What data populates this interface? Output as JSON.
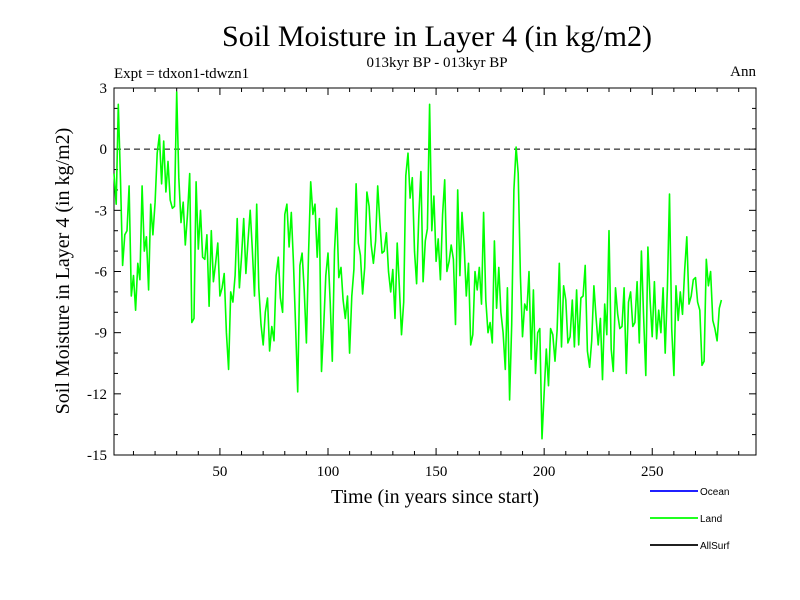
{
  "chart_data": {
    "type": "line",
    "title": "Soil Moisture in Layer 4 (in kg/m2)",
    "subtitle": "013kyr BP - 013kyr BP",
    "expt_label": "Expt = tdxon1-tdwzn1",
    "period_label": "Ann",
    "xlabel": "Time (in years since start)",
    "ylabel": "Soil Moisture in Layer 4 (in kg/m2)",
    "xlim": [
      1,
      298
    ],
    "ylim": [
      -15,
      3
    ],
    "xticks": [
      50,
      100,
      150,
      200,
      250
    ],
    "yticks": [
      3,
      0,
      -3,
      -6,
      -9,
      -12,
      -15
    ],
    "reference_line": 0,
    "series": [
      {
        "name": "Ocean",
        "color": "#0000ff",
        "values": []
      },
      {
        "name": "Land",
        "color": "#00ff00",
        "values": [
          -1.2,
          -2.7,
          2.2,
          -1.5,
          -5.7,
          -4.2,
          -4.0,
          -1.8,
          -7.2,
          -6.2,
          -7.9,
          -5.6,
          -6.4,
          -1.8,
          -5.0,
          -4.3,
          -6.9,
          -2.7,
          -4.2,
          -2.6,
          -0.2,
          0.7,
          -1.7,
          0.4,
          -2.1,
          -0.6,
          -2.5,
          -2.9,
          -2.8,
          2.8,
          -1.4,
          -3.6,
          -2.6,
          -4.7,
          -3.2,
          -1.2,
          -8.5,
          -8.3,
          -1.6,
          -4.9,
          -3.0,
          -5.3,
          -5.4,
          -4.2,
          -7.7,
          -4.0,
          -6.5,
          -5.6,
          -4.6,
          -7.2,
          -6.8,
          -6.1,
          -9.0,
          -10.8,
          -7.0,
          -7.5,
          -6.2,
          -3.4,
          -6.8,
          -5.3,
          -3.4,
          -6.1,
          -4.5,
          -3.0,
          -4.9,
          -7.2,
          -2.7,
          -6.8,
          -8.6,
          -9.6,
          -8.0,
          -7.3,
          -9.9,
          -8.7,
          -9.4,
          -6.2,
          -5.3,
          -7.3,
          -8.0,
          -3.2,
          -2.7,
          -4.8,
          -3.1,
          -5.5,
          -8.7,
          -11.9,
          -5.7,
          -5.1,
          -6.9,
          -9.5,
          -5.2,
          -1.6,
          -3.2,
          -2.7,
          -5.3,
          -3.4,
          -10.9,
          -8.7,
          -6.2,
          -5.1,
          -7.5,
          -10.4,
          -5.0,
          -2.9,
          -6.3,
          -5.8,
          -7.4,
          -8.3,
          -7.2,
          -10.0,
          -7.2,
          -5.9,
          -1.7,
          -4.6,
          -5.2,
          -7.1,
          -5.8,
          -2.1,
          -2.8,
          -4.7,
          -5.6,
          -4.5,
          -1.8,
          -3.6,
          -5.1,
          -5.0,
          -4.1,
          -6.0,
          -7.0,
          -5.9,
          -8.3,
          -4.6,
          -6.7,
          -9.1,
          -7.5,
          -1.3,
          -0.2,
          -2.4,
          -1.4,
          -5.0,
          -6.6,
          -3.3,
          -1.1,
          -6.5,
          -4.5,
          -3.9,
          2.2,
          -4.0,
          -2.3,
          -5.5,
          -4.4,
          -6.4,
          -3.2,
          -1.5,
          -6.0,
          -5.5,
          -4.7,
          -5.4,
          -8.6,
          -2.0,
          -6.2,
          -3.1,
          -4.8,
          -7.2,
          -5.6,
          -9.6,
          -9.1,
          -6.0,
          -6.9,
          -5.8,
          -7.6,
          -3.1,
          -7.4,
          -9.0,
          -8.5,
          -9.5,
          -4.5,
          -7.8,
          -5.8,
          -8.0,
          -9.0,
          -10.8,
          -6.8,
          -12.3,
          -8.6,
          -2.0,
          0.1,
          -1.2,
          -6.2,
          -9.2,
          -7.6,
          -7.9,
          -6.0,
          -10.3,
          -6.9,
          -11.0,
          -9.0,
          -8.8,
          -14.2,
          -11.9,
          -9.8,
          -11.6,
          -8.8,
          -9.1,
          -10.4,
          -8.9,
          -5.6,
          -9.7,
          -6.7,
          -7.4,
          -9.5,
          -9.2,
          -7.4,
          -9.7,
          -6.9,
          -9.6,
          -7.3,
          -7.2,
          -5.7,
          -9.9,
          -10.7,
          -9.4,
          -6.7,
          -8.2,
          -9.6,
          -8.3,
          -11.3,
          -7.6,
          -9.1,
          -4.0,
          -9.8,
          -10.9,
          -6.8,
          -8.1,
          -8.8,
          -8.7,
          -6.8,
          -11.0,
          -7.5,
          -7.0,
          -8.7,
          -8.5,
          -6.5,
          -9.5,
          -5.0,
          -8.2,
          -11.1,
          -4.8,
          -7.4,
          -9.2,
          -6.5,
          -9.3,
          -7.9,
          -9.0,
          -6.8,
          -10.0,
          -6.8,
          -2.2,
          -8.8,
          -11.1,
          -6.7,
          -8.4,
          -7.0,
          -8.1,
          -5.9,
          -4.3,
          -7.6,
          -7.2,
          -6.4,
          -6.3,
          -7.5,
          -7.9,
          -10.6,
          -10.4,
          -5.4,
          -6.7,
          -6.0,
          -8.4,
          -8.8,
          -9.4,
          -7.8,
          -7.4
        ]
      },
      {
        "name": "AllSurf",
        "color": "#000000",
        "values": []
      }
    ],
    "legend": {
      "placement": "bottom-right",
      "entries": [
        "Ocean",
        "Land",
        "AllSurf"
      ]
    }
  }
}
